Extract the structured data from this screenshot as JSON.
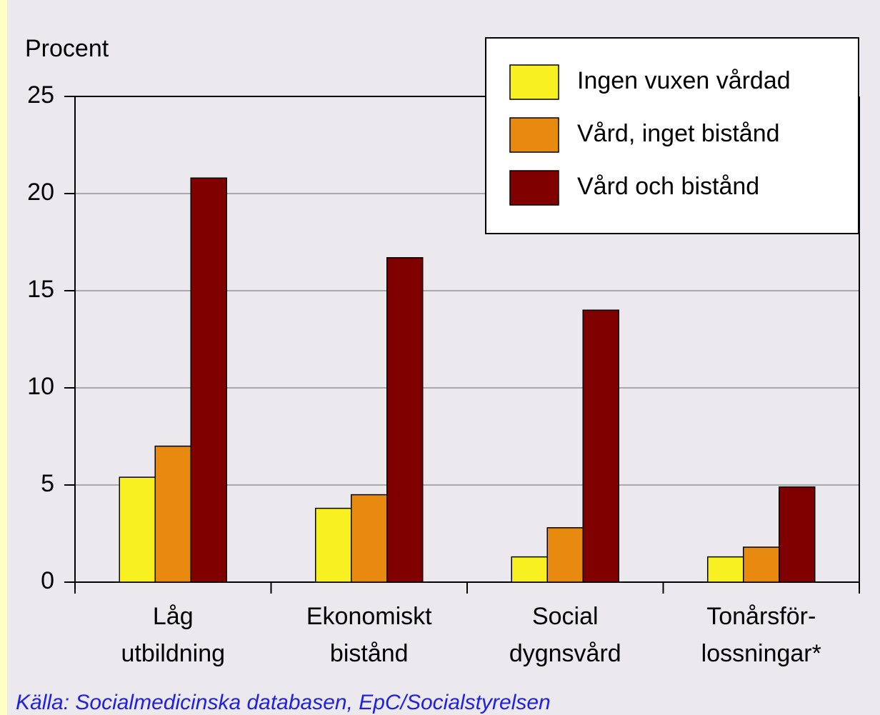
{
  "chart_data": {
    "type": "bar",
    "y_axis_label": "Procent",
    "categories": [
      [
        "Låg",
        "utbildning"
      ],
      [
        "Ekonomiskt",
        "bistånd"
      ],
      [
        "Social",
        "dygnsvård"
      ],
      [
        "Tonårsför-",
        "lossningar*"
      ]
    ],
    "series": [
      {
        "name": "Ingen vuxen vårdad",
        "color": "#f8f020",
        "values": [
          5.4,
          3.8,
          1.3,
          1.3
        ]
      },
      {
        "name": "Vård, inget bistånd",
        "color": "#e88a10",
        "values": [
          7.0,
          4.5,
          2.8,
          1.8
        ]
      },
      {
        "name": "Vård och bistånd",
        "color": "#800000",
        "values": [
          20.8,
          16.7,
          14.0,
          4.9
        ]
      }
    ],
    "ylim": [
      0,
      25
    ],
    "yticks": [
      0,
      5,
      10,
      15,
      20,
      25
    ],
    "grid": true,
    "legend": "top-right",
    "source": "Källa: Socialmedicinska databasen, EpC/Socialstyrelsen"
  }
}
